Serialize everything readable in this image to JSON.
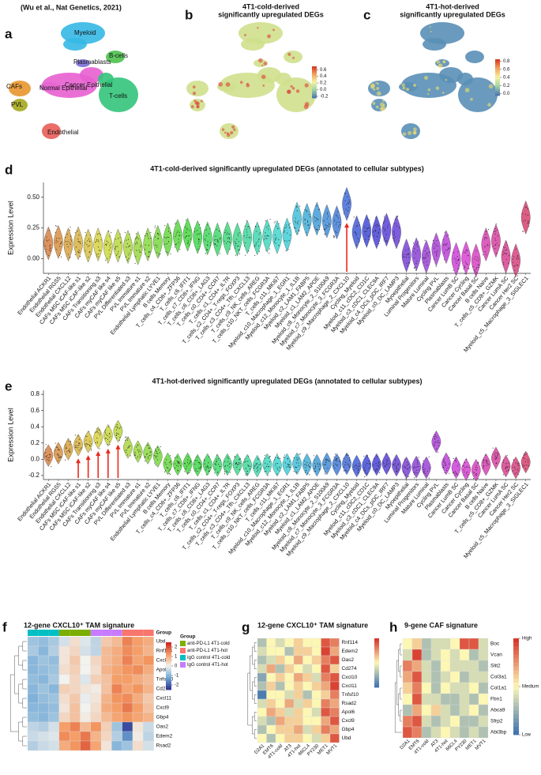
{
  "chart_data": [
    {
      "type": "umap",
      "panel_label": "a",
      "subtitle": "(Wu et al., Nat Genetics, 2021)",
      "clusters": [
        {
          "name": "Myeloid",
          "color": "#35b8e6"
        },
        {
          "name": "Plasmablasts",
          "color": "#7b6fd6"
        },
        {
          "name": "B-cells",
          "color": "#4cc24c"
        },
        {
          "name": "CAFs",
          "color": "#e8962e"
        },
        {
          "name": "Normal Epithelial",
          "color": "#c7a0d8"
        },
        {
          "name": "Cancer Epithelial",
          "color": "#e85fd0"
        },
        {
          "name": "PVL",
          "color": "#a3a81e"
        },
        {
          "name": "T-cells",
          "color": "#33c47a"
        },
        {
          "name": "Endothelial",
          "color": "#e85d58"
        }
      ]
    },
    {
      "type": "umap",
      "panel_label": "b",
      "title": [
        "4T1-cold-derived",
        "significantly upregulated DEGs"
      ],
      "base_color": "#cfe08c",
      "hot_color": "#e0403a",
      "colorbar": {
        "colors": [
          "#4a6fb0",
          "#9fd2a4",
          "#f7f3a0",
          "#f3a15c",
          "#d7301f"
        ],
        "zlim": [
          -0.25,
          0.7
        ],
        "ticks": [
          0.6,
          0.4,
          0.2,
          {
            "value": 0,
            "label": "0.0"
          },
          -0.2
        ]
      }
    },
    {
      "type": "umap",
      "panel_label": "c",
      "title": [
        "4T1-hot-derived",
        "significantly upregulated DEGs"
      ],
      "base_color": "#5a8fb6",
      "hot_color": "#f2e06a",
      "colorbar": {
        "colors": [
          "#4a6fb0",
          "#9fd2a4",
          "#f7f3a0",
          "#f3a15c",
          "#d7301f"
        ],
        "zlim": [
          -0.05,
          0.85
        ],
        "ticks": [
          0.8,
          0.6,
          0.4,
          0.2,
          {
            "value": 0,
            "label": "0.0"
          }
        ]
      }
    },
    {
      "type": "violin",
      "panel_label": "d",
      "title": "4T1-cold-derived significantly upregulated DEGs (annotated to cellular subtypes)",
      "ylabel": "Expression Level",
      "categories": [
        "Endothelial ACKR1",
        "Endothelial RGS5",
        "Endothelial CXCL12",
        "CAFs MSC iCAF-like s1",
        "CAFs MSC iCAF-like s2",
        "CAFs Transitioning s3",
        "CAFs myCAF like s4",
        "CAFs myCAF like s5",
        "PVL Differentiated s3",
        "PVL Immature s1",
        "PVL Immature s2",
        "Endothelial Lymphatic LYVE1",
        "B cells Memory",
        "T_cells_c4_CD8+_ZFP36",
        "T_cells_c6_IFIT1",
        "T_cells_c7_CD8+_IFNG",
        "T_cells_c8_CD8+_LAG3",
        "T_cells_c0_CD4+_CCR7",
        "T_cells_c1_CD4+_IL7R",
        "T_cells_c2_CD4+_T-regs_FOXP3",
        "T_cells_c3_CD4+_Tfh_CXCL13",
        "T_cells_c9_NK_cells_AREG",
        "T_cells_c10_NKT_cells_FCGR3A",
        "T_cells_c11_MKI67",
        "Myeloid_c10_Macrophage_1_EGR1",
        "Myeloid_c12_Monocyte_1_IL1B",
        "Myeloid_c2_LAM1_FABP5",
        "Myeloid_c1_LAM2_APOE",
        "Myeloid_c8_Monocyte_2_S100A9",
        "Myeloid_c7_Monocyte_3_FCGR3A",
        "Myeloid_c9_Macrophage_2_CXCL10",
        "Cycling_Myeloid",
        "Myeloid_c11_cDC2_CD1C",
        "Myeloid_c3_cDC1_CLEC9A",
        "Myeloid_c4_DCs_pDC_IRF7",
        "Myeloid_c0_DC_LAMP3",
        "Myoepithelial",
        "Luminal Progenitors",
        "Mature Luminal",
        "Cycling PVL",
        "Plasmablasts",
        "Cancer LumB SC",
        "Cancer Cycling",
        "Cancer Basal SC",
        "B cells Naive",
        "T_cells_c5_CD8+_GZMK",
        "Cancer LumA SC",
        "Cancer Her2 SC",
        "Myeloid_c5_Macrophage_3_SIGLEC1"
      ],
      "values": [
        0.13,
        0.14,
        0.12,
        0.13,
        0.11,
        0.12,
        0.1,
        0.11,
        0.1,
        0.09,
        0.12,
        0.14,
        0.16,
        0.19,
        0.2,
        0.18,
        0.17,
        0.16,
        0.17,
        0.16,
        0.18,
        0.17,
        0.19,
        0.18,
        0.2,
        0.33,
        0.32,
        0.33,
        0.31,
        0.3,
        0.45,
        0.22,
        0.23,
        0.22,
        0.24,
        0.22,
        0.03,
        0.04,
        0.02,
        0.08,
        0.1,
        0,
        0.01,
        -0.01,
        0.12,
        0.15,
        0.02,
        -0.01,
        0.34
      ],
      "ylim": [
        -0.12,
        0.62
      ],
      "yticks": [
        {
          "value": 0,
          "label": "0.00"
        },
        0.25,
        {
          "value": 0.5,
          "label": "0.50"
        }
      ],
      "highlight": [
        "Myeloid_c9_Macrophage_2_CXCL10"
      ],
      "highlight_color": "#e8291c"
    },
    {
      "type": "violin",
      "panel_label": "e",
      "title": "4T1-hot-derived significantly upregulated DEGs (annotated to cellular subtypes)",
      "ylabel": "Expression Level",
      "categories": [
        "Endothelial ACKR1",
        "Endothelial RGS5",
        "Endothelial CXCL12",
        "CAFs MSC iCAF-like s1",
        "CAFs MSC iCAF-like s2",
        "CAFs Transitioning s3",
        "CAFs myCAF like s4",
        "CAFs myCAF like s5",
        "PVL Differentiated s3",
        "PVL Immature s1",
        "PVL Immature s2",
        "Endothelial Lymphatic LYVE1",
        "B cells Memory",
        "T_cells_c4_CD8+_ZFP36",
        "T_cells_c6_IFIT1",
        "T_cells_c7_CD8+_IFNG",
        "T_cells_c8_CD8+_LAG3",
        "T_cells_c0_CD4+_CCR7",
        "T_cells_c1_CD4+_IL7R",
        "T_cells_c2_CD4+_T-regs_FOXP3",
        "T_cells_c3_CD4+_Tfh_CXCL13",
        "T_cells_c9_NK_cells_AREG",
        "T_cells_c10_NKT_cells_FCGR3A",
        "T_cells_c11_MKI67",
        "Myeloid_c10_Macrophage_1_EGR1",
        "Myeloid_c12_Monocyte_1_IL1B",
        "Myeloid_c2_LAM1_FABP5",
        "Myeloid_c1_LAM2_APOE",
        "Myeloid_c8_Monocyte_2_S100A9",
        "Myeloid_c7_Monocyte_3_FCGR3A",
        "Myeloid_c9_Macrophage_2_CXCL10",
        "Cycling_Myeloid",
        "Myeloid_c11_cDC2_CD1C",
        "Myeloid_c3_cDC1_CLEC9A",
        "Myeloid_c4_DCs_pDC_IRF7",
        "Myeloid_c0_DC_LAMP3",
        "Myoepithelial",
        "Luminal Progenitors",
        "Mature Luminal",
        "Cycling PVL",
        "Plasmablasts",
        "Cancer LumB SC",
        "Cancer Cycling",
        "Cancer Basal SC",
        "B cells Naive",
        "T_cells_c5_CD8+_GZMK",
        "Cancer LumA SC",
        "Cancer Her2 SC",
        "Myeloid_c5_Macrophage_3_SIGLEC1"
      ],
      "values": [
        0.05,
        0.08,
        0.13,
        0.18,
        0.22,
        0.27,
        0.3,
        0.35,
        0.15,
        0.1,
        0.08,
        0.04,
        -0.05,
        -0.06,
        -0.05,
        -0.07,
        -0.06,
        -0.07,
        -0.06,
        -0.06,
        -0.07,
        -0.08,
        -0.06,
        -0.07,
        -0.06,
        -0.05,
        -0.06,
        -0.07,
        -0.05,
        -0.06,
        -0.05,
        -0.08,
        -0.07,
        -0.06,
        -0.05,
        -0.07,
        -0.1,
        -0.09,
        -0.1,
        0.22,
        -0.05,
        -0.1,
        -0.12,
        -0.13,
        -0.06,
        0.02,
        -0.08,
        -0.1,
        -0.03
      ],
      "ylim": [
        -0.25,
        0.85
      ],
      "yticks": [
        -0.2,
        {
          "value": 0,
          "label": "0.0"
        },
        0.2,
        0.4,
        0.6,
        0.8
      ],
      "highlight": [
        "CAFs MSC iCAF-like s1",
        "CAFs MSC iCAF-like s2",
        "CAFs Transitioning s3",
        "CAFs myCAF like s4",
        "CAFs myCAF like s5"
      ],
      "highlight_color": "#e8291c"
    },
    {
      "type": "heatmap",
      "panel_label": "f",
      "title": "12-gene CXCL10⁺ TAM signature",
      "rows": [
        "Ubd",
        "Rnf114",
        "Cxcl10",
        "Apol6",
        "Tnfsf10",
        "Cd274",
        "Cxcl11",
        "Cxcl9",
        "Gbp4",
        "Oas2",
        "Edem2",
        "Rsad2"
      ],
      "group_label": "Group",
      "legend_title": "Group",
      "groups": [
        {
          "name": "anti-PD-L1 4T1-cold",
          "color": "#7cae00"
        },
        {
          "name": "anti-PD-L1 4T1-hot",
          "color": "#f8766d"
        },
        {
          "name": "IgG control 4T1-cold",
          "color": "#00bfc4"
        },
        {
          "name": "IgG control 4T1-hot",
          "color": "#c77cff"
        }
      ],
      "column_groups": [
        2,
        2,
        2,
        0,
        0,
        0,
        3,
        3,
        3,
        1,
        1,
        1
      ],
      "colors": [
        "#2b2f8c",
        "#6fa8d6",
        "#f2f2ee",
        "#f59a62",
        "#c9201c"
      ],
      "zlim": [
        -2.5,
        2.5
      ],
      "zticks": [
        2,
        1,
        0,
        -1,
        -2
      ],
      "values": [
        [
          -0.8,
          -0.9,
          -0.7,
          -0.3,
          0.3,
          -0.2,
          -0.5,
          0.6,
          0.8,
          1.5,
          1.2,
          1.0
        ],
        [
          -0.7,
          -1,
          -0.6,
          0.2,
          0.4,
          -0.3,
          -0.5,
          0.8,
          1,
          1.4,
          1.2,
          0.9
        ],
        [
          -1,
          -0.8,
          -0.9,
          0.2,
          0.6,
          0,
          0.4,
          0.8,
          1.0,
          1.5,
          1.1,
          1.3
        ],
        [
          -1,
          -0.9,
          -0.8,
          0.3,
          0.5,
          0,
          0.3,
          0.9,
          1.1,
          1.3,
          1.4,
          1.0
        ],
        [
          -0.9,
          -1,
          -0.7,
          0,
          0.4,
          -0.2,
          0.5,
          0.7,
          1.2,
          1.2,
          1.0,
          0.8
        ],
        [
          -1,
          -0.8,
          -1,
          0.5,
          0.4,
          0.2,
          0.1,
          0.7,
          1.5,
          1.1,
          1.3,
          0.9
        ],
        [
          -1.1,
          -0.9,
          -0.8,
          0.3,
          0.6,
          -0.1,
          0.2,
          0.9,
          1.3,
          1.4,
          1.0,
          0.6
        ],
        [
          -1,
          -1,
          -0.9,
          0.2,
          0.7,
          0,
          0.3,
          1,
          1.2,
          1.6,
          1.2,
          0.7
        ],
        [
          -0.9,
          -1,
          -0.8,
          0.4,
          0.7,
          0.1,
          0.4,
          0.8,
          1.1,
          1.3,
          1.1,
          0.9
        ],
        [
          -0.5,
          -0.6,
          -0.3,
          1.2,
          1.5,
          0.8,
          1.3,
          0.5,
          -0.8,
          -2.2,
          0.2,
          -0.4
        ],
        [
          -0.4,
          -0.3,
          -0.2,
          1.4,
          1.2,
          1.6,
          0.9,
          0.4,
          -0.6,
          -1.5,
          0.1,
          -0.5
        ],
        [
          -0.6,
          -0.4,
          -0.3,
          1.0,
          1.3,
          1.8,
          1.1,
          0.2,
          -1.0,
          -0.8,
          0.3,
          -0.3
        ]
      ]
    },
    {
      "type": "heatmap",
      "panel_label": "g",
      "title": "12-gene CXCL10⁺ TAM signature",
      "rows": [
        "Rnf114",
        "Edem2",
        "Oas2",
        "Cd274",
        "Cxcl10",
        "Cxcl11",
        "Tnfsf10",
        "Rsad2",
        "Apol6",
        "Cxcl9",
        "Gbp4",
        "Ubd"
      ],
      "columns": [
        "D2A1",
        "EMT6",
        "4T1-cold",
        "AT3",
        "4T1-hot",
        "66CL4",
        "PY230",
        "MET1",
        "MVT1"
      ],
      "colors": [
        "#3a6fb0",
        "#fdf7b4",
        "#d62f26"
      ],
      "zlim": [
        0,
        1
      ],
      "values": [
        [
          0.3,
          0.5,
          0.4,
          0.5,
          0.6,
          0.5,
          0.5,
          0.9,
          0.8
        ],
        [
          0.4,
          0.5,
          0.5,
          0.3,
          0.6,
          0.6,
          0.5,
          0.95,
          0.7
        ],
        [
          0.3,
          0.4,
          0.6,
          0.5,
          0.7,
          0.5,
          0.6,
          0.8,
          0.9
        ],
        [
          0.4,
          0.7,
          0.3,
          0.6,
          0.5,
          0.4,
          0.5,
          0.9,
          0.6
        ],
        [
          0.2,
          0.5,
          0.6,
          0.5,
          0.7,
          0.6,
          0.4,
          0.8,
          0.9
        ],
        [
          0.3,
          0.6,
          0.3,
          0.5,
          0.6,
          0.5,
          0.6,
          0.7,
          0.95
        ],
        [
          0.05,
          0.5,
          0.5,
          0.4,
          0.6,
          0.3,
          0.5,
          0.6,
          0.8
        ],
        [
          0.4,
          0.6,
          0.5,
          0.7,
          0.4,
          0.6,
          0.5,
          0.8,
          0.7
        ],
        [
          0.5,
          0.7,
          0.6,
          0.4,
          0.6,
          0.5,
          0.4,
          0.9,
          0.8
        ],
        [
          0.4,
          0.3,
          0.7,
          0.6,
          0.6,
          0.5,
          0.5,
          0.7,
          0.9
        ],
        [
          0.3,
          0.5,
          0.6,
          0.6,
          0.7,
          0.4,
          0.6,
          0.8,
          0.7
        ],
        [
          0.5,
          0.3,
          0.5,
          0.6,
          0.6,
          0.5,
          0.4,
          0.6,
          0.9
        ]
      ]
    },
    {
      "type": "heatmap",
      "panel_label": "h",
      "title": "9-gene CAF signature",
      "rows": [
        "Boc",
        "Vcan",
        "Slit2",
        "Col3a1",
        "Col1a1",
        "Fbn1",
        "Abca9",
        "Sfrp2",
        "Abi3bp"
      ],
      "columns": [
        "D2A1",
        "EMT6",
        "4T1-cold",
        "AT3",
        "4T1-hot",
        "66CL4",
        "PY230",
        "MET1",
        "MVT1"
      ],
      "colors": [
        "#3a6fb0",
        "#fdf7b4",
        "#d62f26"
      ],
      "zlim": [
        0,
        1
      ],
      "zticks": [
        {
          "value": 1,
          "label": "High"
        },
        {
          "value": 0.5,
          "label": "Medium"
        },
        {
          "value": 0,
          "label": "Low"
        }
      ],
      "values": [
        [
          0.5,
          0.6,
          0.3,
          0.4,
          0.4,
          0.5,
          0.9,
          0.9,
          0.4
        ],
        [
          0.4,
          0.95,
          0.3,
          0.4,
          0.5,
          0.4,
          0.5,
          0.3,
          0.4
        ],
        [
          0.8,
          0.7,
          0.4,
          0.3,
          0.5,
          0.4,
          0.4,
          0.4,
          0.3
        ],
        [
          0.7,
          0.9,
          0.4,
          0.3,
          0.4,
          0.5,
          0.3,
          0.4,
          0.4
        ],
        [
          0.6,
          0.8,
          0.5,
          0.3,
          0.5,
          0.4,
          0.4,
          0.5,
          0.3
        ],
        [
          0.5,
          0.9,
          0.4,
          0.4,
          0.3,
          0.3,
          0.4,
          0.3,
          0.5
        ],
        [
          0.3,
          0.7,
          0.5,
          0.6,
          0.4,
          0.3,
          0.4,
          0.5,
          0.3
        ],
        [
          0.8,
          0.9,
          0.4,
          0.3,
          0.4,
          0.5,
          0.3,
          0.3,
          0.4
        ],
        [
          0.9,
          0.8,
          0.3,
          0.4,
          0.5,
          0.4,
          0.3,
          0.4,
          0.3
        ]
      ]
    }
  ]
}
